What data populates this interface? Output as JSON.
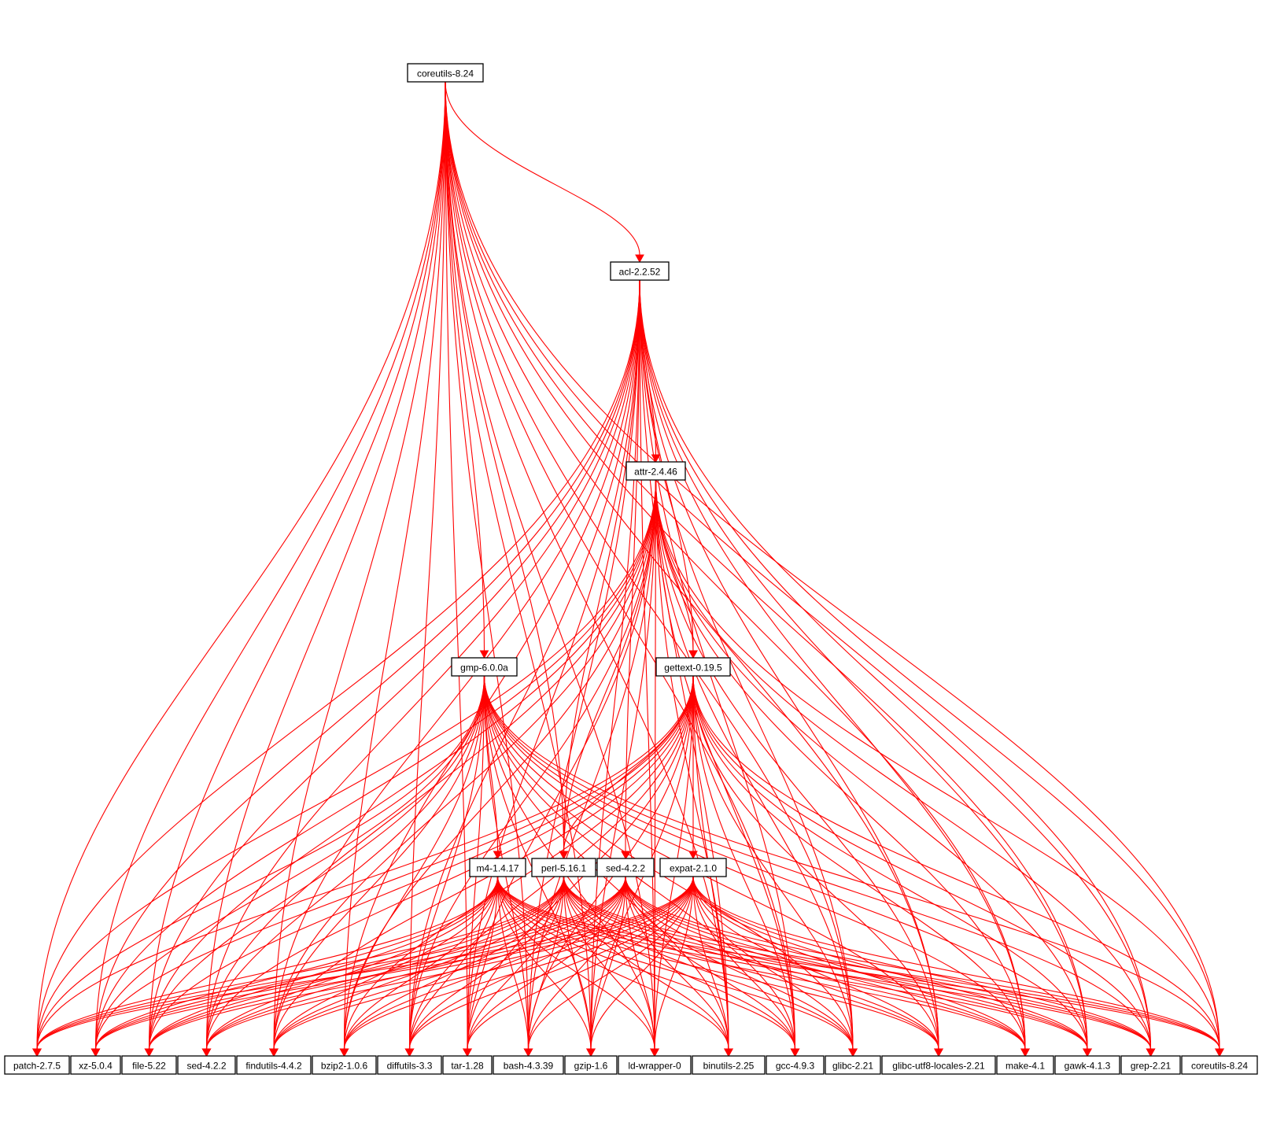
{
  "diagram": {
    "type": "dependency-graph",
    "edge_color": "#ff0000",
    "node_border_color": "#000000",
    "nodes": [
      {
        "id": "coreutils_top",
        "label": "coreutils-8.24"
      },
      {
        "id": "acl",
        "label": "acl-2.2.52"
      },
      {
        "id": "attr",
        "label": "attr-2.4.46"
      },
      {
        "id": "gmp",
        "label": "gmp-6.0.0a"
      },
      {
        "id": "gettext",
        "label": "gettext-0.19.5"
      },
      {
        "id": "m4",
        "label": "m4-1.4.17"
      },
      {
        "id": "perl",
        "label": "perl-5.16.1"
      },
      {
        "id": "sed_mid",
        "label": "sed-4.2.2"
      },
      {
        "id": "expat",
        "label": "expat-2.1.0"
      },
      {
        "id": "patch",
        "label": "patch-2.7.5"
      },
      {
        "id": "xz",
        "label": "xz-5.0.4"
      },
      {
        "id": "file",
        "label": "file-5.22"
      },
      {
        "id": "sed_bot",
        "label": "sed-4.2.2"
      },
      {
        "id": "findutils",
        "label": "findutils-4.4.2"
      },
      {
        "id": "bzip2",
        "label": "bzip2-1.0.6"
      },
      {
        "id": "diffutils",
        "label": "diffutils-3.3"
      },
      {
        "id": "tar",
        "label": "tar-1.28"
      },
      {
        "id": "bash",
        "label": "bash-4.3.39"
      },
      {
        "id": "gzip",
        "label": "gzip-1.6"
      },
      {
        "id": "ldwrapper",
        "label": "ld-wrapper-0"
      },
      {
        "id": "binutils",
        "label": "binutils-2.25"
      },
      {
        "id": "gcc",
        "label": "gcc-4.9.3"
      },
      {
        "id": "glibc",
        "label": "glibc-2.21"
      },
      {
        "id": "glibcutf8",
        "label": "glibc-utf8-locales-2.21"
      },
      {
        "id": "make",
        "label": "make-4.1"
      },
      {
        "id": "gawk",
        "label": "gawk-4.1.3"
      },
      {
        "id": "grep",
        "label": "grep-2.21"
      },
      {
        "id": "coreutils_bot",
        "label": "coreutils-8.24"
      }
    ],
    "edges": [
      [
        "coreutils_top",
        "acl"
      ],
      [
        "coreutils_top",
        "gmp"
      ],
      [
        "coreutils_top",
        "perl"
      ],
      [
        "coreutils_top",
        "patch"
      ],
      [
        "coreutils_top",
        "xz"
      ],
      [
        "coreutils_top",
        "file"
      ],
      [
        "coreutils_top",
        "sed_bot"
      ],
      [
        "coreutils_top",
        "findutils"
      ],
      [
        "coreutils_top",
        "bzip2"
      ],
      [
        "coreutils_top",
        "diffutils"
      ],
      [
        "coreutils_top",
        "tar"
      ],
      [
        "coreutils_top",
        "bash"
      ],
      [
        "coreutils_top",
        "gzip"
      ],
      [
        "coreutils_top",
        "ldwrapper"
      ],
      [
        "coreutils_top",
        "binutils"
      ],
      [
        "coreutils_top",
        "gcc"
      ],
      [
        "coreutils_top",
        "glibc"
      ],
      [
        "coreutils_top",
        "glibcutf8"
      ],
      [
        "coreutils_top",
        "make"
      ],
      [
        "coreutils_top",
        "gawk"
      ],
      [
        "coreutils_top",
        "grep"
      ],
      [
        "coreutils_top",
        "coreutils_bot"
      ],
      [
        "acl",
        "attr"
      ],
      [
        "acl",
        "gettext"
      ],
      [
        "acl",
        "perl"
      ],
      [
        "acl",
        "sed_mid"
      ],
      [
        "acl",
        "patch"
      ],
      [
        "acl",
        "xz"
      ],
      [
        "acl",
        "file"
      ],
      [
        "acl",
        "sed_bot"
      ],
      [
        "acl",
        "findutils"
      ],
      [
        "acl",
        "bzip2"
      ],
      [
        "acl",
        "diffutils"
      ],
      [
        "acl",
        "tar"
      ],
      [
        "acl",
        "bash"
      ],
      [
        "acl",
        "gzip"
      ],
      [
        "acl",
        "ldwrapper"
      ],
      [
        "acl",
        "binutils"
      ],
      [
        "acl",
        "gcc"
      ],
      [
        "acl",
        "glibc"
      ],
      [
        "acl",
        "glibcutf8"
      ],
      [
        "acl",
        "make"
      ],
      [
        "acl",
        "gawk"
      ],
      [
        "acl",
        "grep"
      ],
      [
        "acl",
        "coreutils_bot"
      ],
      [
        "attr",
        "gettext"
      ],
      [
        "attr",
        "perl"
      ],
      [
        "attr",
        "patch"
      ],
      [
        "attr",
        "xz"
      ],
      [
        "attr",
        "file"
      ],
      [
        "attr",
        "sed_bot"
      ],
      [
        "attr",
        "findutils"
      ],
      [
        "attr",
        "bzip2"
      ],
      [
        "attr",
        "diffutils"
      ],
      [
        "attr",
        "tar"
      ],
      [
        "attr",
        "bash"
      ],
      [
        "attr",
        "gzip"
      ],
      [
        "attr",
        "ldwrapper"
      ],
      [
        "attr",
        "binutils"
      ],
      [
        "attr",
        "gcc"
      ],
      [
        "attr",
        "glibc"
      ],
      [
        "attr",
        "glibcutf8"
      ],
      [
        "attr",
        "make"
      ],
      [
        "attr",
        "gawk"
      ],
      [
        "attr",
        "grep"
      ],
      [
        "attr",
        "coreutils_bot"
      ],
      [
        "gmp",
        "m4"
      ],
      [
        "gmp",
        "patch"
      ],
      [
        "gmp",
        "xz"
      ],
      [
        "gmp",
        "file"
      ],
      [
        "gmp",
        "sed_bot"
      ],
      [
        "gmp",
        "findutils"
      ],
      [
        "gmp",
        "bzip2"
      ],
      [
        "gmp",
        "diffutils"
      ],
      [
        "gmp",
        "tar"
      ],
      [
        "gmp",
        "bash"
      ],
      [
        "gmp",
        "gzip"
      ],
      [
        "gmp",
        "ldwrapper"
      ],
      [
        "gmp",
        "binutils"
      ],
      [
        "gmp",
        "gcc"
      ],
      [
        "gmp",
        "glibc"
      ],
      [
        "gmp",
        "glibcutf8"
      ],
      [
        "gmp",
        "make"
      ],
      [
        "gmp",
        "gawk"
      ],
      [
        "gmp",
        "grep"
      ],
      [
        "gmp",
        "coreutils_bot"
      ],
      [
        "gettext",
        "expat"
      ],
      [
        "gettext",
        "perl"
      ],
      [
        "gettext",
        "patch"
      ],
      [
        "gettext",
        "xz"
      ],
      [
        "gettext",
        "file"
      ],
      [
        "gettext",
        "sed_bot"
      ],
      [
        "gettext",
        "findutils"
      ],
      [
        "gettext",
        "bzip2"
      ],
      [
        "gettext",
        "diffutils"
      ],
      [
        "gettext",
        "tar"
      ],
      [
        "gettext",
        "bash"
      ],
      [
        "gettext",
        "gzip"
      ],
      [
        "gettext",
        "ldwrapper"
      ],
      [
        "gettext",
        "binutils"
      ],
      [
        "gettext",
        "gcc"
      ],
      [
        "gettext",
        "glibc"
      ],
      [
        "gettext",
        "glibcutf8"
      ],
      [
        "gettext",
        "make"
      ],
      [
        "gettext",
        "gawk"
      ],
      [
        "gettext",
        "grep"
      ],
      [
        "gettext",
        "coreutils_bot"
      ],
      [
        "m4",
        "patch"
      ],
      [
        "m4",
        "xz"
      ],
      [
        "m4",
        "file"
      ],
      [
        "m4",
        "sed_bot"
      ],
      [
        "m4",
        "findutils"
      ],
      [
        "m4",
        "bzip2"
      ],
      [
        "m4",
        "diffutils"
      ],
      [
        "m4",
        "tar"
      ],
      [
        "m4",
        "bash"
      ],
      [
        "m4",
        "gzip"
      ],
      [
        "m4",
        "ldwrapper"
      ],
      [
        "m4",
        "binutils"
      ],
      [
        "m4",
        "gcc"
      ],
      [
        "m4",
        "glibc"
      ],
      [
        "m4",
        "glibcutf8"
      ],
      [
        "m4",
        "make"
      ],
      [
        "m4",
        "gawk"
      ],
      [
        "m4",
        "grep"
      ],
      [
        "m4",
        "coreutils_bot"
      ],
      [
        "perl",
        "patch"
      ],
      [
        "perl",
        "xz"
      ],
      [
        "perl",
        "file"
      ],
      [
        "perl",
        "sed_bot"
      ],
      [
        "perl",
        "findutils"
      ],
      [
        "perl",
        "bzip2"
      ],
      [
        "perl",
        "diffutils"
      ],
      [
        "perl",
        "tar"
      ],
      [
        "perl",
        "bash"
      ],
      [
        "perl",
        "gzip"
      ],
      [
        "perl",
        "ldwrapper"
      ],
      [
        "perl",
        "binutils"
      ],
      [
        "perl",
        "gcc"
      ],
      [
        "perl",
        "glibc"
      ],
      [
        "perl",
        "glibcutf8"
      ],
      [
        "perl",
        "make"
      ],
      [
        "perl",
        "gawk"
      ],
      [
        "perl",
        "grep"
      ],
      [
        "perl",
        "coreutils_bot"
      ],
      [
        "sed_mid",
        "patch"
      ],
      [
        "sed_mid",
        "xz"
      ],
      [
        "sed_mid",
        "file"
      ],
      [
        "sed_mid",
        "sed_bot"
      ],
      [
        "sed_mid",
        "findutils"
      ],
      [
        "sed_mid",
        "bzip2"
      ],
      [
        "sed_mid",
        "diffutils"
      ],
      [
        "sed_mid",
        "tar"
      ],
      [
        "sed_mid",
        "bash"
      ],
      [
        "sed_mid",
        "gzip"
      ],
      [
        "sed_mid",
        "ldwrapper"
      ],
      [
        "sed_mid",
        "binutils"
      ],
      [
        "sed_mid",
        "gcc"
      ],
      [
        "sed_mid",
        "glibc"
      ],
      [
        "sed_mid",
        "glibcutf8"
      ],
      [
        "sed_mid",
        "make"
      ],
      [
        "sed_mid",
        "gawk"
      ],
      [
        "sed_mid",
        "grep"
      ],
      [
        "sed_mid",
        "coreutils_bot"
      ],
      [
        "expat",
        "patch"
      ],
      [
        "expat",
        "xz"
      ],
      [
        "expat",
        "file"
      ],
      [
        "expat",
        "sed_bot"
      ],
      [
        "expat",
        "findutils"
      ],
      [
        "expat",
        "bzip2"
      ],
      [
        "expat",
        "diffutils"
      ],
      [
        "expat",
        "tar"
      ],
      [
        "expat",
        "bash"
      ],
      [
        "expat",
        "gzip"
      ],
      [
        "expat",
        "ldwrapper"
      ],
      [
        "expat",
        "binutils"
      ],
      [
        "expat",
        "gcc"
      ],
      [
        "expat",
        "glibc"
      ],
      [
        "expat",
        "glibcutf8"
      ],
      [
        "expat",
        "make"
      ],
      [
        "expat",
        "gawk"
      ],
      [
        "expat",
        "grep"
      ],
      [
        "expat",
        "coreutils_bot"
      ]
    ]
  }
}
